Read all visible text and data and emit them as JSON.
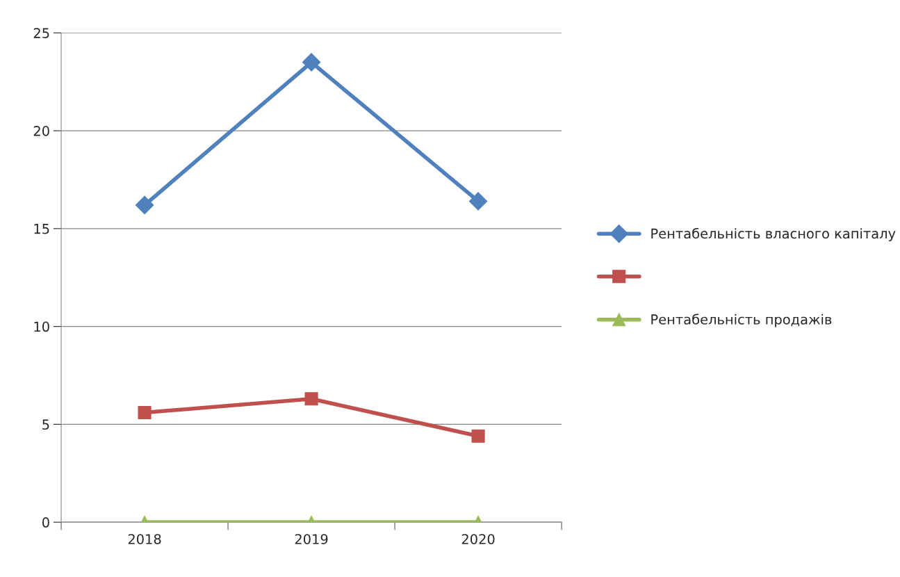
{
  "chart_data": {
    "type": "line",
    "categories": [
      "2018",
      "2019",
      "2020"
    ],
    "series": [
      {
        "name": "Рентабельність власного капіталу",
        "color": "#4f81bd",
        "marker": "diamond",
        "values": [
          16.2,
          23.5,
          16.4
        ]
      },
      {
        "color": "#c0504d",
        "marker": "square",
        "values": [
          5.6,
          6.3,
          4.4
        ]
      },
      {
        "name": "Рентабельність продажів",
        "color": "#9bbb59",
        "marker": "triangle",
        "values": [
          0,
          0,
          0
        ]
      }
    ],
    "ylim": [
      0,
      25
    ],
    "yticks": [
      0,
      5,
      10,
      15,
      20,
      25
    ],
    "grid": "y",
    "legend": "right",
    "line_style": "solid"
  }
}
